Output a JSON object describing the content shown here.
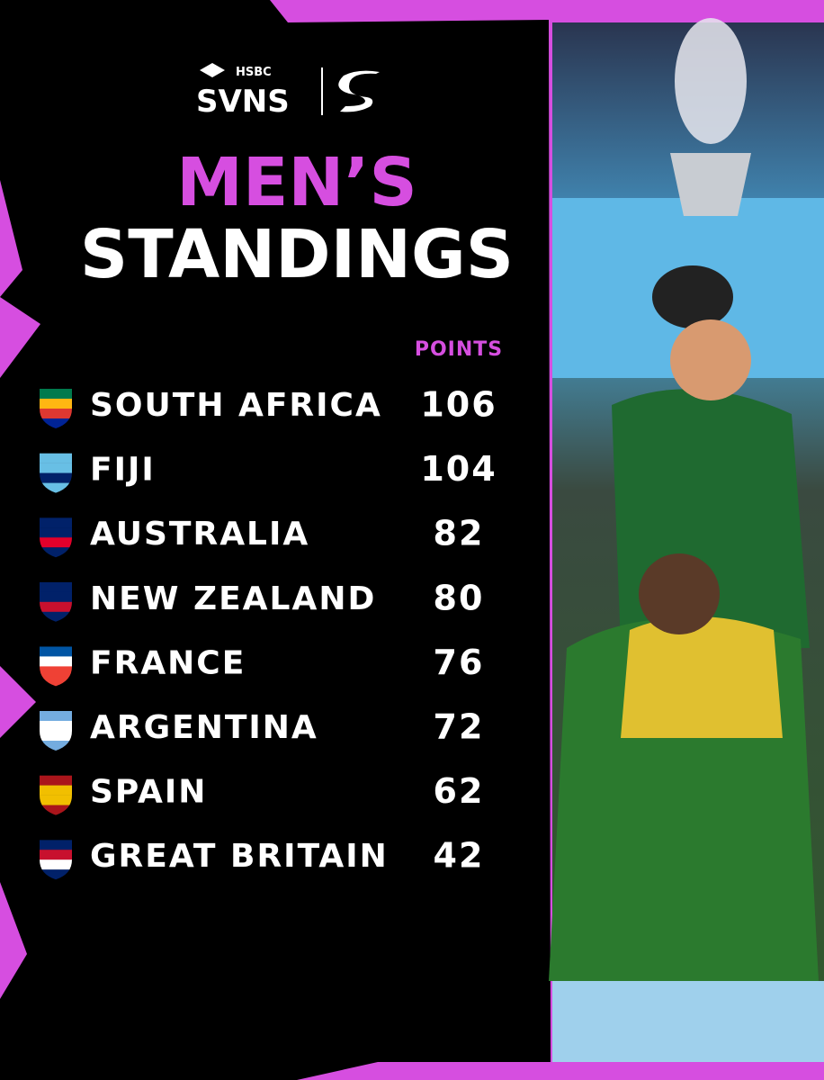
{
  "logo": {
    "sponsor": "HSBC",
    "brand": "SVNS"
  },
  "title": {
    "line1": "MEN’S",
    "line2": "STANDINGS"
  },
  "table": {
    "header": "POINTS",
    "rows": [
      {
        "team": "SOUTH AFRICA",
        "points": 106
      },
      {
        "team": "FIJI",
        "points": 104
      },
      {
        "team": "AUSTRALIA",
        "points": 82
      },
      {
        "team": "NEW ZEALAND",
        "points": 80
      },
      {
        "team": "FRANCE",
        "points": 76
      },
      {
        "team": "ARGENTINA",
        "points": 72
      },
      {
        "team": "SPAIN",
        "points": 62
      },
      {
        "team": "GREAT BRITAIN",
        "points": 42
      }
    ]
  }
}
